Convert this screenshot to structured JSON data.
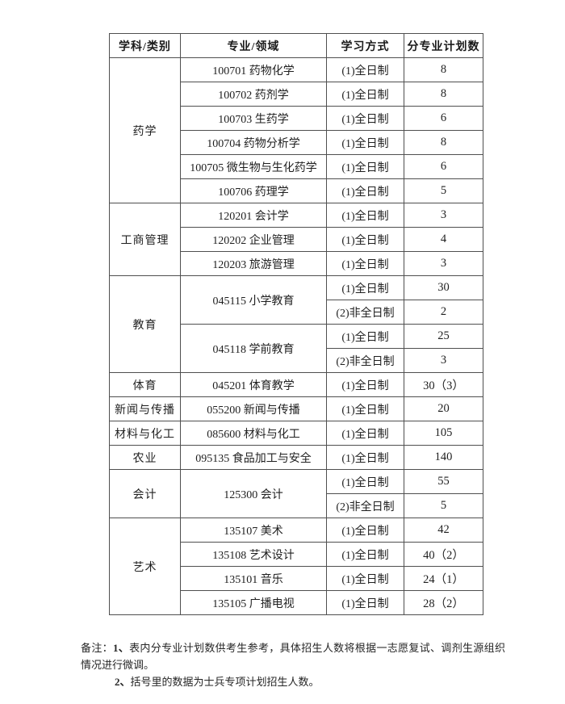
{
  "table": {
    "headers": [
      "学科/类别",
      "专业/领域",
      "学习方式",
      "分专业计划数"
    ],
    "groups": [
      {
        "category": "药学",
        "majors": [
          {
            "name": "100701 药物化学",
            "modes": [
              {
                "mode": "(1)全日制",
                "count": "8"
              }
            ]
          },
          {
            "name": "100702 药剂学",
            "modes": [
              {
                "mode": "(1)全日制",
                "count": "8"
              }
            ]
          },
          {
            "name": "100703 生药学",
            "modes": [
              {
                "mode": "(1)全日制",
                "count": "6"
              }
            ]
          },
          {
            "name": "100704 药物分析学",
            "modes": [
              {
                "mode": "(1)全日制",
                "count": "8"
              }
            ]
          },
          {
            "name": "100705 微生物与生化药学",
            "modes": [
              {
                "mode": "(1)全日制",
                "count": "6"
              }
            ]
          },
          {
            "name": "100706 药理学",
            "modes": [
              {
                "mode": "(1)全日制",
                "count": "5"
              }
            ]
          }
        ]
      },
      {
        "category": "工商管理",
        "majors": [
          {
            "name": "120201 会计学",
            "modes": [
              {
                "mode": "(1)全日制",
                "count": "3"
              }
            ]
          },
          {
            "name": "120202 企业管理",
            "modes": [
              {
                "mode": "(1)全日制",
                "count": "4"
              }
            ]
          },
          {
            "name": "120203 旅游管理",
            "modes": [
              {
                "mode": "(1)全日制",
                "count": "3"
              }
            ]
          }
        ]
      },
      {
        "category": "教育",
        "majors": [
          {
            "name": "045115 小学教育",
            "modes": [
              {
                "mode": "(1)全日制",
                "count": "30"
              },
              {
                "mode": "(2)非全日制",
                "count": "2"
              }
            ]
          },
          {
            "name": "045118 学前教育",
            "modes": [
              {
                "mode": "(1)全日制",
                "count": "25"
              },
              {
                "mode": "(2)非全日制",
                "count": "3"
              }
            ]
          }
        ]
      },
      {
        "category": "体育",
        "majors": [
          {
            "name": "045201 体育教学",
            "modes": [
              {
                "mode": "(1)全日制",
                "count": "30（3）"
              }
            ]
          }
        ]
      },
      {
        "category": "新闻与传播",
        "majors": [
          {
            "name": "055200 新闻与传播",
            "modes": [
              {
                "mode": "(1)全日制",
                "count": "20"
              }
            ]
          }
        ]
      },
      {
        "category": "材料与化工",
        "majors": [
          {
            "name": "085600 材料与化工",
            "modes": [
              {
                "mode": "(1)全日制",
                "count": "105"
              }
            ]
          }
        ]
      },
      {
        "category": "农业",
        "majors": [
          {
            "name": "095135 食品加工与安全",
            "modes": [
              {
                "mode": "(1)全日制",
                "count": "140"
              }
            ]
          }
        ]
      },
      {
        "category": "会计",
        "majors": [
          {
            "name": "125300 会计",
            "modes": [
              {
                "mode": "(1)全日制",
                "count": "55"
              },
              {
                "mode": "(2)非全日制",
                "count": "5"
              }
            ]
          }
        ]
      },
      {
        "category": "艺术",
        "majors": [
          {
            "name": "135107 美术",
            "modes": [
              {
                "mode": "(1)全日制",
                "count": "42"
              }
            ]
          },
          {
            "name": "135108 艺术设计",
            "modes": [
              {
                "mode": "(1)全日制",
                "count": "40（2）"
              }
            ]
          },
          {
            "name": "135101 音乐",
            "modes": [
              {
                "mode": "(1)全日制",
                "count": "24（1）"
              }
            ]
          },
          {
            "name": "135105 广播电视",
            "modes": [
              {
                "mode": "(1)全日制",
                "count": "28（2）"
              }
            ]
          }
        ]
      }
    ]
  },
  "notes": {
    "label": "备注：",
    "items": [
      {
        "num": "1、",
        "text": "表内分专业计划数供考生参考，具体招生人数将根据一志愿复试、调剂生源组织情况进行微调。"
      },
      {
        "num": "2、",
        "text": "括号里的数据为士兵专项计划招生人数。"
      }
    ]
  },
  "colors": {
    "table_border": "#4f4f4f",
    "text": "#1f1f1f",
    "background": "#ffffff"
  }
}
